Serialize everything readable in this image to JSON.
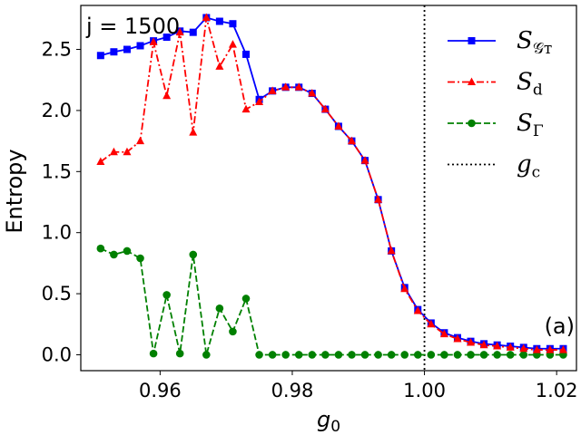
{
  "chart_data": {
    "type": "line",
    "annotation": "j = 1500",
    "panel_label": "(a)",
    "xlabel": "g0",
    "ylabel": "Entropy",
    "xlim": [
      0.948,
      1.023
    ],
    "ylim": [
      -0.13,
      2.86
    ],
    "xticks": [
      0.96,
      0.98,
      1.0,
      1.02
    ],
    "xtick_labels": [
      "0.96",
      "0.98",
      "1.00",
      "1.02"
    ],
    "yticks": [
      0.0,
      0.5,
      1.0,
      1.5,
      2.0,
      2.5
    ],
    "ytick_labels": [
      "0.0",
      "0.5",
      "1.0",
      "1.5",
      "2.0",
      "2.5"
    ],
    "x": [
      0.951,
      0.953,
      0.955,
      0.957,
      0.959,
      0.961,
      0.963,
      0.965,
      0.967,
      0.969,
      0.971,
      0.973,
      0.975,
      0.977,
      0.979,
      0.981,
      0.983,
      0.985,
      0.987,
      0.989,
      0.991,
      0.993,
      0.995,
      0.997,
      0.999,
      1.001,
      1.003,
      1.005,
      1.007,
      1.009,
      1.011,
      1.013,
      1.015,
      1.017,
      1.019,
      1.021
    ],
    "series": [
      {
        "name": "S_GT",
        "label_main": "S",
        "label_sub": "𝒢ᴛ",
        "color": "#0000ff",
        "linestyle": "solid",
        "marker": "square",
        "values": [
          2.45,
          2.48,
          2.5,
          2.53,
          2.57,
          2.6,
          2.65,
          2.64,
          2.76,
          2.73,
          2.71,
          2.46,
          2.09,
          2.16,
          2.19,
          2.19,
          2.14,
          2.01,
          1.87,
          1.75,
          1.59,
          1.27,
          0.85,
          0.55,
          0.37,
          0.26,
          0.18,
          0.14,
          0.11,
          0.09,
          0.08,
          0.07,
          0.06,
          0.05,
          0.05,
          0.05
        ]
      },
      {
        "name": "S_d",
        "label_main": "S",
        "label_sub": "d",
        "color": "#ff0000",
        "linestyle": "dashdot",
        "marker": "triangle",
        "values": [
          1.58,
          1.66,
          1.66,
          1.75,
          2.56,
          2.12,
          2.64,
          1.82,
          2.76,
          2.36,
          2.54,
          2.01,
          2.07,
          2.16,
          2.19,
          2.19,
          2.14,
          2.01,
          1.87,
          1.75,
          1.59,
          1.27,
          0.85,
          0.54,
          0.36,
          0.25,
          0.17,
          0.13,
          0.1,
          0.08,
          0.07,
          0.06,
          0.05,
          0.04,
          0.04,
          0.04
        ]
      },
      {
        "name": "S_Gamma",
        "label_main": "S",
        "label_sub": "Γ",
        "color": "#008000",
        "linestyle": "dashed",
        "marker": "circle",
        "values": [
          0.87,
          0.82,
          0.85,
          0.79,
          0.01,
          0.49,
          0.01,
          0.82,
          0.0,
          0.38,
          0.19,
          0.46,
          0.0,
          0.0,
          0.0,
          0.0,
          0.0,
          0.0,
          0.0,
          0.0,
          0.0,
          0.0,
          0.0,
          0.0,
          0.0,
          0.0,
          0.0,
          0.0,
          0.0,
          0.0,
          0.0,
          0.0,
          0.0,
          0.0,
          0.0,
          0.0
        ]
      }
    ],
    "vline": {
      "name": "g_c",
      "label_main": "g",
      "label_sub": "c",
      "x": 1.0,
      "color": "#000000",
      "linestyle": "dotted"
    },
    "legend_position": "top-right"
  }
}
